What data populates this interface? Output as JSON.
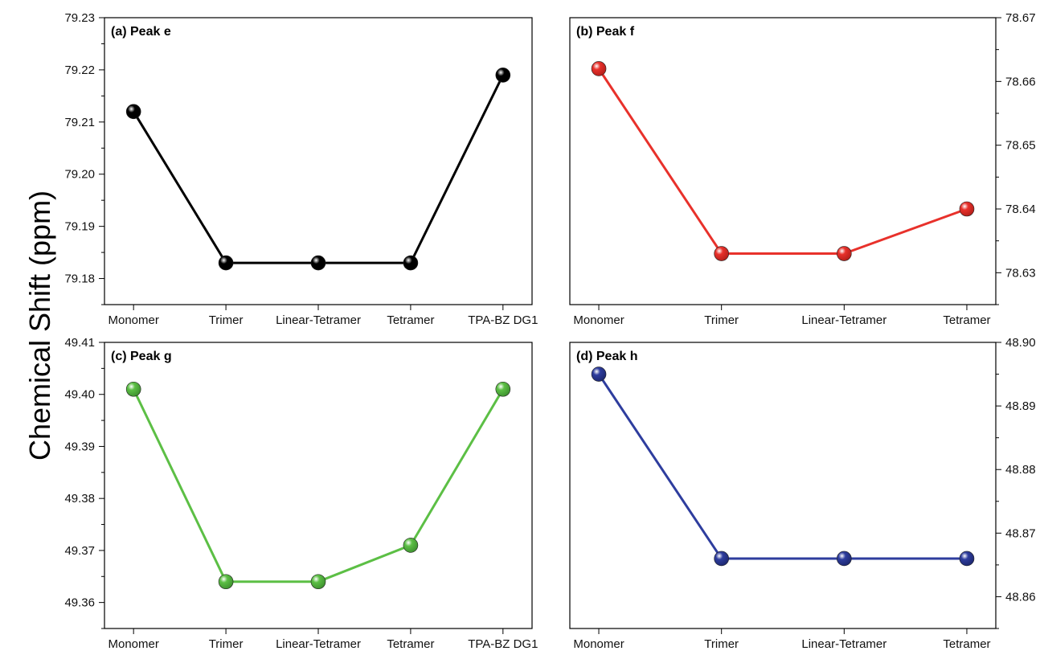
{
  "figure": {
    "ylabel": "Chemical Shift (ppm)"
  },
  "chart_data": [
    {
      "type": "line",
      "title": "(a) Peak e",
      "categories": [
        "Monomer",
        "Trimer",
        "Linear-Tetramer",
        "Tetramer",
        "TPA-BZ DG1"
      ],
      "values": [
        79.212,
        79.183,
        79.183,
        79.183,
        79.219
      ],
      "color": "#000000",
      "ylim": [
        79.175,
        79.23
      ],
      "yticks": [
        "79.18",
        "79.19",
        "79.20",
        "79.21",
        "79.22",
        "79.23"
      ],
      "yaxis_side": "left",
      "grid": false
    },
    {
      "type": "line",
      "title": "(b) Peak f",
      "categories": [
        "Monomer",
        "Trimer",
        "Linear-Tetramer",
        "Tetramer"
      ],
      "values": [
        78.662,
        78.633,
        78.633,
        78.64
      ],
      "color": "#e8312b",
      "ylim": [
        78.625,
        78.67
      ],
      "yticks": [
        "78.63",
        "78.64",
        "78.65",
        "78.66",
        "78.67"
      ],
      "yaxis_side": "right",
      "grid": false
    },
    {
      "type": "line",
      "title": "(c) Peak g",
      "categories": [
        "Monomer",
        "Trimer",
        "Linear-Tetramer",
        "Tetramer",
        "TPA-BZ DG1"
      ],
      "values": [
        49.401,
        49.364,
        49.364,
        49.371,
        49.401
      ],
      "color": "#5cbf45",
      "ylim": [
        49.355,
        49.41
      ],
      "yticks": [
        "49.36",
        "49.37",
        "49.38",
        "49.39",
        "49.40",
        "49.41"
      ],
      "yaxis_side": "left",
      "grid": false
    },
    {
      "type": "line",
      "title": "(d) Peak h",
      "categories": [
        "Monomer",
        "Trimer",
        "Linear-Tetramer",
        "Tetramer"
      ],
      "values": [
        48.895,
        48.866,
        48.866,
        48.866
      ],
      "color": "#2e3d9e",
      "ylim": [
        48.855,
        48.9
      ],
      "yticks": [
        "48.86",
        "48.87",
        "48.88",
        "48.89",
        "48.90"
      ],
      "yaxis_side": "right",
      "grid": false
    }
  ]
}
